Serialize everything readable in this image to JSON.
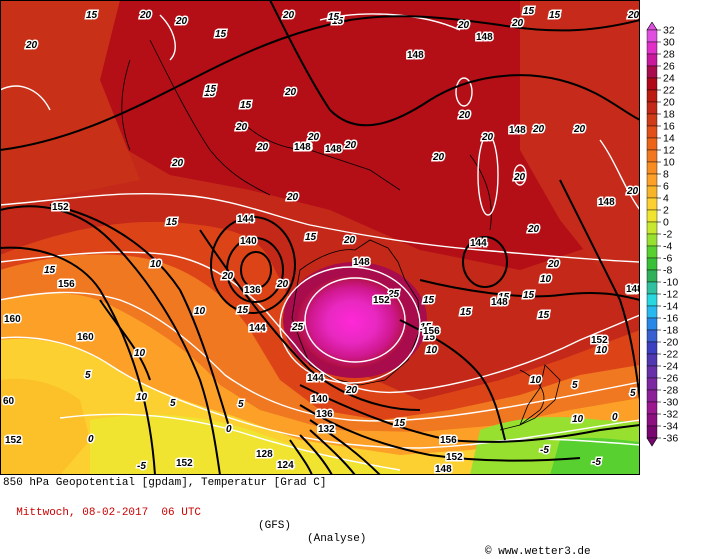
{
  "map": {
    "level": "850 hPa",
    "fields": [
      "Geopotential [gpdam]",
      "Temperatur [Grad C]"
    ],
    "title_line": "850 hPa Geopotential [gpdam], Temperatur [Grad C]",
    "date_line": "Mittwoch, 08-02-2017  06 UTC",
    "model": "(GFS)",
    "mode": "(Analyse)",
    "copyright_symbol": "©",
    "source": "www.wetter3.de",
    "temperature_labels": [
      {
        "id": "t1",
        "text": "15"
      },
      {
        "id": "t2",
        "text": "20"
      },
      {
        "id": "t3",
        "text": "20"
      },
      {
        "id": "t4",
        "text": "15"
      },
      {
        "id": "t5",
        "text": "20"
      },
      {
        "id": "t6",
        "text": "15"
      },
      {
        "id": "t7",
        "text": "20"
      },
      {
        "id": "t8",
        "text": "15"
      },
      {
        "id": "t9",
        "text": "20"
      },
      {
        "id": "t10",
        "text": "20"
      },
      {
        "id": "t11",
        "text": "15"
      },
      {
        "id": "t12",
        "text": "20"
      },
      {
        "id": "t13",
        "text": "15"
      },
      {
        "id": "t14",
        "text": "20"
      },
      {
        "id": "t15",
        "text": "15"
      },
      {
        "id": "t16",
        "text": "20"
      },
      {
        "id": "t17",
        "text": "20"
      },
      {
        "id": "t18",
        "text": "20"
      },
      {
        "id": "t19",
        "text": "20"
      },
      {
        "id": "t20",
        "text": "20"
      },
      {
        "id": "t21",
        "text": "20"
      },
      {
        "id": "t22",
        "text": "20"
      },
      {
        "id": "t23",
        "text": "20"
      },
      {
        "id": "t24",
        "text": "15"
      },
      {
        "id": "t25",
        "text": "10"
      },
      {
        "id": "t26",
        "text": "15"
      },
      {
        "id": "t27",
        "text": "10"
      },
      {
        "id": "t28",
        "text": "5"
      },
      {
        "id": "t29",
        "text": "10"
      },
      {
        "id": "t30",
        "text": "5"
      },
      {
        "id": "t31",
        "text": "0"
      },
      {
        "id": "t32",
        "text": "5"
      },
      {
        "id": "t33",
        "text": "0"
      },
      {
        "id": "t34",
        "text": "-5"
      },
      {
        "id": "t35",
        "text": "25"
      },
      {
        "id": "t36",
        "text": "25"
      },
      {
        "id": "t37",
        "text": "20"
      },
      {
        "id": "t38",
        "text": "15"
      },
      {
        "id": "t39",
        "text": "15"
      },
      {
        "id": "t40",
        "text": "10"
      },
      {
        "id": "t41",
        "text": "15"
      },
      {
        "id": "t42",
        "text": "10"
      },
      {
        "id": "t43",
        "text": "5"
      },
      {
        "id": "t44",
        "text": "0"
      },
      {
        "id": "t45",
        "text": "-5"
      },
      {
        "id": "t46",
        "text": "-5"
      },
      {
        "id": "t47",
        "text": "5"
      },
      {
        "id": "t48",
        "text": "10"
      },
      {
        "id": "t49",
        "text": "15"
      },
      {
        "id": "t50",
        "text": "20"
      },
      {
        "id": "t51",
        "text": "20"
      },
      {
        "id": "t52",
        "text": "20"
      },
      {
        "id": "t53",
        "text": "20"
      },
      {
        "id": "t54",
        "text": "20"
      },
      {
        "id": "t55",
        "text": "20"
      },
      {
        "id": "t56",
        "text": "15"
      },
      {
        "id": "t57",
        "text": "15"
      },
      {
        "id": "t58",
        "text": "15"
      },
      {
        "id": "t59",
        "text": "15"
      },
      {
        "id": "t60",
        "text": "20"
      },
      {
        "id": "t61",
        "text": "20"
      },
      {
        "id": "t62",
        "text": "15"
      },
      {
        "id": "t63",
        "text": "15"
      },
      {
        "id": "t64",
        "text": "20"
      },
      {
        "id": "t65",
        "text": "20"
      },
      {
        "id": "t66",
        "text": "15"
      },
      {
        "id": "t67",
        "text": "10"
      },
      {
        "id": "t68",
        "text": "10"
      },
      {
        "id": "t69",
        "text": "10"
      },
      {
        "id": "t70",
        "text": "15"
      },
      {
        "id": "t71",
        "text": "15"
      }
    ],
    "height_labels": [
      {
        "id": "h1",
        "text": "148"
      },
      {
        "id": "h2",
        "text": "148"
      },
      {
        "id": "h3",
        "text": "152"
      },
      {
        "id": "h4",
        "text": "148"
      },
      {
        "id": "h5",
        "text": "148"
      },
      {
        "id": "h6",
        "text": "148"
      },
      {
        "id": "h7",
        "text": "148"
      },
      {
        "id": "h8",
        "text": "144"
      },
      {
        "id": "h9",
        "text": "140"
      },
      {
        "id": "h10",
        "text": "136"
      },
      {
        "id": "h11",
        "text": "144"
      },
      {
        "id": "h12",
        "text": "144"
      },
      {
        "id": "h13",
        "text": "156"
      },
      {
        "id": "h14",
        "text": "160"
      },
      {
        "id": "h15",
        "text": "152"
      },
      {
        "id": "h16",
        "text": "160"
      },
      {
        "id": "h17",
        "text": "144"
      },
      {
        "id": "h18",
        "text": "140"
      },
      {
        "id": "h19",
        "text": "136"
      },
      {
        "id": "h20",
        "text": "132"
      },
      {
        "id": "h21",
        "text": "128"
      },
      {
        "id": "h22",
        "text": "124"
      },
      {
        "id": "h23",
        "text": "148"
      },
      {
        "id": "h24",
        "text": "152"
      },
      {
        "id": "h25",
        "text": "156"
      },
      {
        "id": "h26",
        "text": "152"
      },
      {
        "id": "h27",
        "text": "148"
      },
      {
        "id": "h28",
        "text": "152"
      },
      {
        "id": "h29",
        "text": "148"
      },
      {
        "id": "h30",
        "text": "148"
      },
      {
        "id": "h31",
        "text": "152"
      },
      {
        "id": "h32",
        "text": "156"
      },
      {
        "id": "h33",
        "text": "148"
      },
      {
        "id": "h34",
        "text": "60"
      }
    ]
  },
  "legend": {
    "ticks": [
      "32",
      "30",
      "28",
      "26",
      "24",
      "22",
      "20",
      "18",
      "16",
      "14",
      "12",
      "10",
      "8",
      "6",
      "4",
      "2",
      "0",
      "-2",
      "-4",
      "-6",
      "-8",
      "-10",
      "-12",
      "-14",
      "-16",
      "-18",
      "-20",
      "-22",
      "-24",
      "-26",
      "-28",
      "-30",
      "-32",
      "-34",
      "-36"
    ],
    "colors": [
      "#e050e0",
      "#e030c8",
      "#c8189c",
      "#a80c4c",
      "#b00818",
      "#bc1c10",
      "#c42818",
      "#d03c18",
      "#e05018",
      "#ec6418",
      "#f27820",
      "#f88c20",
      "#fca028",
      "#f8b428",
      "#fcd030",
      "#f0e430",
      "#c8e830",
      "#98e030",
      "#58d030",
      "#38c038",
      "#30b058",
      "#30c0a0",
      "#28d8e0",
      "#28b8f0",
      "#2888e8",
      "#3860d0",
      "#3c40c0",
      "#5038b0",
      "#6830a8",
      "#7c28a0",
      "#8c2098",
      "#9c1890",
      "#8c1080",
      "#780870"
    ]
  }
}
